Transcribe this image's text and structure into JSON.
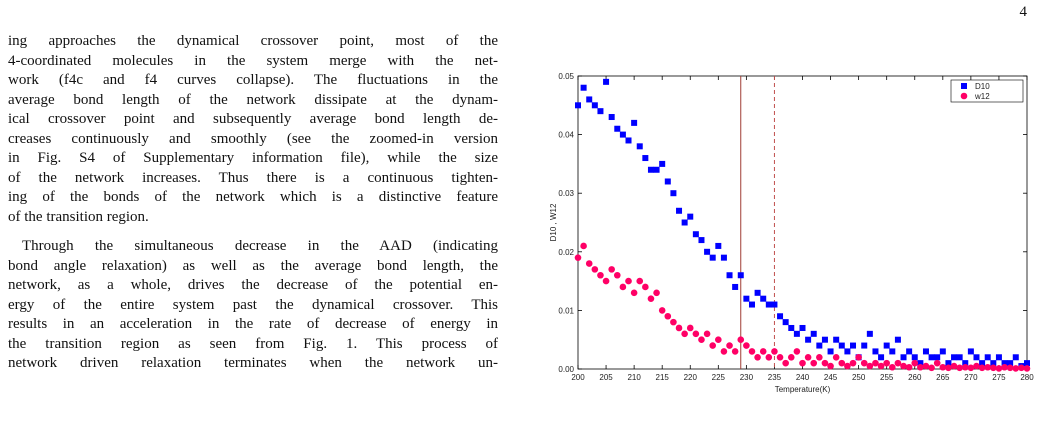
{
  "page_number": "4",
  "paragraphs": [
    [
      "ing approaches the dynamical crossover point, most of the",
      "4-coordinated molecules in the system merge with the net-",
      "work (f4c and f4 curves collapse). The fluctuations in the",
      "average bond length of the network dissipate at the dynam-",
      "ical crossover point and subsequently average bond length de-",
      "creases continuously and smoothly (see the zoomed-in version",
      "in Fig. S4 of Supplementary information file), while the size",
      "of the network increases. Thus there is a continuous tighten-",
      "ing of the bonds of the network which is a distinctive feature",
      "of the transition region."
    ],
    [
      "Through the simultaneous decrease in the AAD (indicating",
      "bond angle relaxation) as well as the average bond length, the",
      "network, as a whole, drives the decrease of the potential en-",
      "ergy of the entire system past the dynamical crossover. This",
      "results in an acceleration in the rate of decrease of energy in",
      "the transition region as seen from Fig. 1. This process of",
      "network driven relaxation terminates when the network un-"
    ]
  ],
  "chart_data": {
    "type": "scatter",
    "x_label": "Temperature(K)",
    "y_label": "D10 , W12",
    "legend": "top-right",
    "x": [
      200,
      201,
      202,
      203,
      204,
      205,
      206,
      207,
      208,
      209,
      210,
      211,
      212,
      213,
      214,
      215,
      216,
      217,
      218,
      219,
      220,
      221,
      222,
      223,
      224,
      225,
      226,
      227,
      228,
      229,
      230,
      231,
      232,
      233,
      234,
      235,
      236,
      237,
      238,
      239,
      240,
      241,
      242,
      243,
      244,
      245,
      246,
      247,
      248,
      249,
      250,
      251,
      252,
      253,
      254,
      255,
      256,
      257,
      258,
      259,
      260,
      261,
      262,
      263,
      264,
      265,
      266,
      267,
      268,
      269,
      270,
      271,
      272,
      273,
      274,
      275,
      276,
      277,
      278,
      279,
      280
    ],
    "series": [
      {
        "name": "D10",
        "color": "#0000ff",
        "marker": "square",
        "values": [
          0.045,
          0.048,
          0.046,
          0.045,
          0.044,
          0.049,
          0.043,
          0.041,
          0.04,
          0.039,
          0.042,
          0.038,
          0.036,
          0.034,
          0.034,
          0.035,
          0.032,
          0.03,
          0.027,
          0.025,
          0.026,
          0.023,
          0.022,
          0.02,
          0.019,
          0.021,
          0.019,
          0.016,
          0.014,
          0.016,
          0.012,
          0.011,
          0.013,
          0.012,
          0.011,
          0.011,
          0.009,
          0.008,
          0.007,
          0.006,
          0.007,
          0.005,
          0.006,
          0.004,
          0.005,
          0.003,
          0.005,
          0.004,
          0.003,
          0.004,
          0.002,
          0.004,
          0.006,
          0.003,
          0.002,
          0.004,
          0.003,
          0.005,
          0.002,
          0.003,
          0.002,
          0.001,
          0.003,
          0.002,
          0.002,
          0.003,
          0.001,
          0.002,
          0.002,
          0.001,
          0.003,
          0.002,
          0.001,
          0.002,
          0.001,
          0.002,
          0.001,
          0.001,
          0.002,
          0.0005,
          0.001
        ]
      },
      {
        "name": "w12",
        "color": "#ff0066",
        "marker": "circle",
        "values": [
          0.019,
          0.021,
          0.018,
          0.017,
          0.016,
          0.015,
          0.017,
          0.016,
          0.014,
          0.015,
          0.013,
          0.015,
          0.014,
          0.012,
          0.013,
          0.01,
          0.009,
          0.008,
          0.007,
          0.006,
          0.007,
          0.006,
          0.005,
          0.006,
          0.004,
          0.005,
          0.003,
          0.004,
          0.003,
          0.005,
          0.004,
          0.003,
          0.002,
          0.003,
          0.002,
          0.003,
          0.002,
          0.001,
          0.002,
          0.003,
          0.001,
          0.002,
          0.001,
          0.002,
          0.001,
          0.0005,
          0.002,
          0.001,
          0.0005,
          0.001,
          0.002,
          0.001,
          0.0005,
          0.001,
          0.0005,
          0.001,
          0.0003,
          0.001,
          0.0005,
          0.0003,
          0.001,
          0.0003,
          0.0005,
          0.0002,
          0.001,
          0.0003,
          0.0002,
          0.0005,
          0.0002,
          0.0003,
          0.0002,
          0.0005,
          0.0002,
          0.0003,
          0.0002,
          0.0001,
          0.0003,
          0.0002,
          0.0001,
          0.0002,
          0.0001
        ]
      }
    ],
    "vlines": [
      {
        "x": 229,
        "color": "#a03c32",
        "dashed": false
      },
      {
        "x": 235,
        "color": "#c0504d",
        "dashed": true
      }
    ],
    "xlim": [
      200,
      280
    ],
    "xticks": [
      200,
      205,
      210,
      215,
      220,
      225,
      230,
      235,
      240,
      245,
      250,
      255,
      260,
      265,
      270,
      275,
      280
    ],
    "ylim": [
      0,
      0.05
    ],
    "yticks": [
      {
        "value": 0,
        "label": "0.00"
      },
      {
        "value": 0.01,
        "label": "0.01"
      },
      {
        "value": 0.02,
        "label": "0.02"
      },
      {
        "value": 0.03,
        "label": "0.03"
      },
      {
        "value": 0.04,
        "label": "0.04"
      },
      {
        "value": 0.05,
        "label": "0.05"
      }
    ]
  }
}
